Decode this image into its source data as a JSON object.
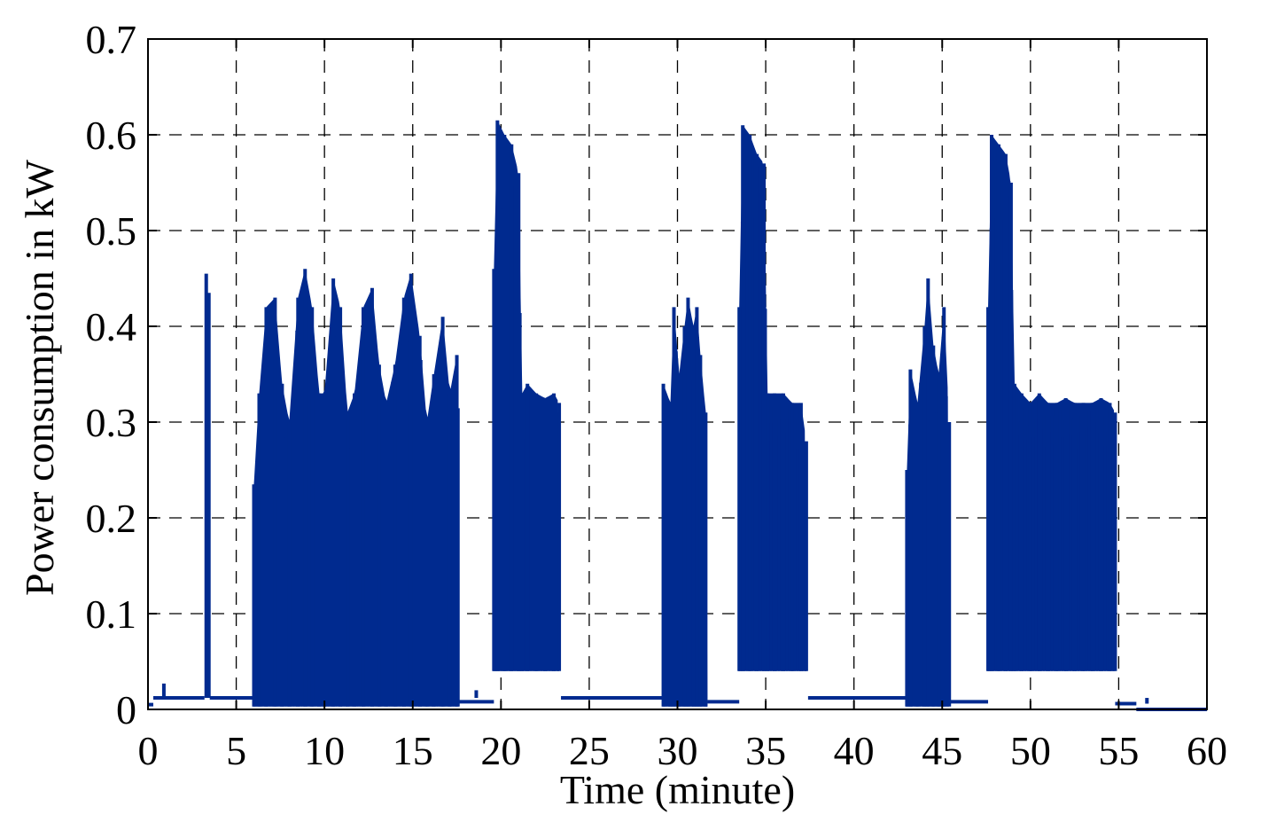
{
  "chart_data": {
    "type": "line",
    "title": "",
    "xlabel": "Time (minute)",
    "ylabel": "Power consumption in kW",
    "xlim": [
      0,
      60
    ],
    "ylim": [
      0,
      0.7
    ],
    "x_ticks": [
      0,
      5,
      10,
      15,
      20,
      25,
      30,
      35,
      40,
      45,
      50,
      55,
      60
    ],
    "y_ticks": [
      0,
      0.1,
      0.2,
      0.3,
      0.4,
      0.5,
      0.6,
      0.7
    ],
    "x_tick_labels": [
      "0",
      "5",
      "10",
      "15",
      "20",
      "25",
      "30",
      "35",
      "40",
      "45",
      "50",
      "55",
      "60"
    ],
    "y_tick_labels": [
      "0",
      "0.1",
      "0.2",
      "0.3",
      "0.4",
      "0.5",
      "0.6",
      "0.7"
    ],
    "grid": true,
    "line_color": "#002a8f",
    "series": [
      {
        "values": {
          "baseline_segments": [
            {
              "x_start": 0.0,
              "x_end": 0.3,
              "y": 0.005
            },
            {
              "x_start": 0.3,
              "x_end": 3.2,
              "y": 0.012
            },
            {
              "x_start": 3.5,
              "x_end": 6.0,
              "y": 0.012
            },
            {
              "x_start": 17.6,
              "x_end": 19.6,
              "y": 0.008
            },
            {
              "x_start": 23.4,
              "x_end": 29.2,
              "y": 0.012
            },
            {
              "x_start": 31.7,
              "x_end": 33.5,
              "y": 0.008
            },
            {
              "x_start": 37.4,
              "x_end": 43.0,
              "y": 0.012
            },
            {
              "x_start": 45.4,
              "x_end": 47.6,
              "y": 0.008
            },
            {
              "x_start": 54.8,
              "x_end": 56.0,
              "y": 0.006
            },
            {
              "x_start": 56.0,
              "x_end": 60.0,
              "y": 0.0
            }
          ],
          "spikes": [
            {
              "x": 0.9,
              "y": 0.027
            },
            {
              "x": 3.3,
              "y": 0.455
            },
            {
              "x": 3.45,
              "y": 0.435
            },
            {
              "x": 18.6,
              "y": 0.02
            },
            {
              "x": 56.6,
              "y": 0.006
            }
          ],
          "bursts": [
            {
              "x_start": 6.0,
              "x_end": 17.6,
              "low": 0.003,
              "envelope": [
                [
                  6.0,
                  0.235
                ],
                [
                  6.3,
                  0.33
                ],
                [
                  6.7,
                  0.42
                ],
                [
                  7.2,
                  0.43
                ],
                [
                  7.6,
                  0.34
                ],
                [
                  8.0,
                  0.3
                ],
                [
                  8.5,
                  0.43
                ],
                [
                  8.9,
                  0.46
                ],
                [
                  9.3,
                  0.42
                ],
                [
                  9.7,
                  0.33
                ],
                [
                  10.0,
                  0.33
                ],
                [
                  10.5,
                  0.45
                ],
                [
                  10.9,
                  0.42
                ],
                [
                  11.3,
                  0.31
                ],
                [
                  11.7,
                  0.33
                ],
                [
                  12.2,
                  0.42
                ],
                [
                  12.7,
                  0.44
                ],
                [
                  13.1,
                  0.36
                ],
                [
                  13.5,
                  0.32
                ],
                [
                  14.0,
                  0.36
                ],
                [
                  14.5,
                  0.43
                ],
                [
                  14.9,
                  0.455
                ],
                [
                  15.4,
                  0.39
                ],
                [
                  15.8,
                  0.3
                ],
                [
                  16.2,
                  0.35
                ],
                [
                  16.7,
                  0.41
                ],
                [
                  17.1,
                  0.33
                ],
                [
                  17.5,
                  0.37
                ]
              ]
            },
            {
              "x_start": 19.6,
              "x_end": 23.3,
              "low": 0.04,
              "envelope": [
                [
                  19.6,
                  0.46
                ],
                [
                  19.8,
                  0.615
                ],
                [
                  20.2,
                  0.6
                ],
                [
                  20.6,
                  0.59
                ],
                [
                  21.0,
                  0.56
                ],
                [
                  21.2,
                  0.33
                ],
                [
                  21.5,
                  0.34
                ],
                [
                  22.0,
                  0.33
                ],
                [
                  22.5,
                  0.325
                ],
                [
                  23.0,
                  0.33
                ],
                [
                  23.3,
                  0.32
                ]
              ]
            },
            {
              "x_start": 29.2,
              "x_end": 31.7,
              "low": 0.003,
              "envelope": [
                [
                  29.2,
                  0.34
                ],
                [
                  29.6,
                  0.32
                ],
                [
                  29.8,
                  0.42
                ],
                [
                  30.1,
                  0.35
                ],
                [
                  30.4,
                  0.4
                ],
                [
                  30.6,
                  0.43
                ],
                [
                  30.9,
                  0.4
                ],
                [
                  31.1,
                  0.42
                ],
                [
                  31.3,
                  0.37
                ],
                [
                  31.6,
                  0.31
                ]
              ]
            },
            {
              "x_start": 33.5,
              "x_end": 37.3,
              "low": 0.04,
              "envelope": [
                [
                  33.5,
                  0.42
                ],
                [
                  33.7,
                  0.61
                ],
                [
                  34.1,
                  0.6
                ],
                [
                  34.5,
                  0.58
                ],
                [
                  34.9,
                  0.57
                ],
                [
                  35.1,
                  0.33
                ],
                [
                  35.5,
                  0.33
                ],
                [
                  36.0,
                  0.33
                ],
                [
                  36.5,
                  0.32
                ],
                [
                  37.0,
                  0.32
                ],
                [
                  37.3,
                  0.28
                ]
              ]
            },
            {
              "x_start": 43.0,
              "x_end": 45.4,
              "low": 0.003,
              "envelope": [
                [
                  43.0,
                  0.25
                ],
                [
                  43.2,
                  0.355
                ],
                [
                  43.6,
                  0.32
                ],
                [
                  44.0,
                  0.4
                ],
                [
                  44.2,
                  0.45
                ],
                [
                  44.5,
                  0.38
                ],
                [
                  44.8,
                  0.35
                ],
                [
                  45.1,
                  0.42
                ],
                [
                  45.4,
                  0.3
                ]
              ]
            },
            {
              "x_start": 47.6,
              "x_end": 54.8,
              "low": 0.04,
              "envelope": [
                [
                  47.6,
                  0.42
                ],
                [
                  47.8,
                  0.6
                ],
                [
                  48.2,
                  0.59
                ],
                [
                  48.6,
                  0.58
                ],
                [
                  48.9,
                  0.55
                ],
                [
                  49.1,
                  0.34
                ],
                [
                  49.5,
                  0.33
                ],
                [
                  50.0,
                  0.32
                ],
                [
                  50.5,
                  0.33
                ],
                [
                  51.0,
                  0.32
                ],
                [
                  51.5,
                  0.32
                ],
                [
                  52.0,
                  0.325
                ],
                [
                  52.5,
                  0.32
                ],
                [
                  53.0,
                  0.32
                ],
                [
                  53.5,
                  0.32
                ],
                [
                  54.0,
                  0.325
                ],
                [
                  54.5,
                  0.32
                ],
                [
                  54.8,
                  0.31
                ]
              ]
            }
          ]
        }
      }
    ]
  }
}
